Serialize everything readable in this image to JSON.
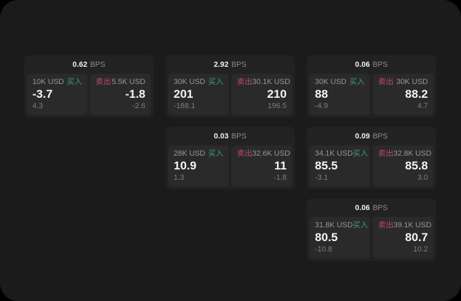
{
  "labels": {
    "bps_unit": "BPS",
    "buy": "买入",
    "sell": "卖出"
  },
  "colors": {
    "buy_green": "#3ea068",
    "sell_red": "#bf4a63",
    "screen_bg": "#1b1b1c",
    "card_bg": "#222223",
    "pane_bg": "#2a2a2b"
  },
  "cards": [
    {
      "bps": "0.62",
      "buy": {
        "size": "10K USD",
        "price": "-3.7",
        "delta": "4.3"
      },
      "sell": {
        "size": "5.5K USD",
        "price": "-1.8",
        "delta": "-2.6"
      }
    },
    {
      "bps": "2.92",
      "buy": {
        "size": "30K USD",
        "price": "201",
        "delta": "-188.1"
      },
      "sell": {
        "size": "30.1K USD",
        "price": "210",
        "delta": "196.5"
      }
    },
    {
      "bps": "0.06",
      "buy": {
        "size": "30K USD",
        "price": "88",
        "delta": "-4.9"
      },
      "sell": {
        "size": "30K USD",
        "price": "88.2",
        "delta": "4.7"
      }
    },
    {
      "bps": "0.03",
      "buy": {
        "size": "28K USD",
        "price": "10.9",
        "delta": "1.3"
      },
      "sell": {
        "size": "32.6K USD",
        "price": "11",
        "delta": "-1.8"
      }
    },
    {
      "bps": "0.09",
      "buy": {
        "size": "34.1K USD",
        "price": "85.5",
        "delta": "-3.1"
      },
      "sell": {
        "size": "32.8K USD",
        "price": "85.8",
        "delta": "3.0"
      }
    },
    {
      "bps": "0.06",
      "buy": {
        "size": "31.8K USD",
        "price": "80.5",
        "delta": "-10.8"
      },
      "sell": {
        "size": "39.1K USD",
        "price": "80.7",
        "delta": "10.2"
      }
    }
  ]
}
